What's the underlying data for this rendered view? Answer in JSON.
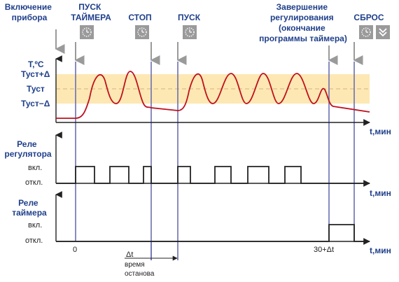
{
  "events": {
    "power_on": "Включение прибора",
    "start_timer": "ПУСК ТАЙМЕРА",
    "stop": "СТОП",
    "start": "ПУСК",
    "end": "Завершение регулирования (окончание программы таймера)",
    "reset": "СБРОС"
  },
  "event_lines": {
    "power_on": [
      "Включение",
      "прибора"
    ],
    "start_timer": [
      "ПУСК",
      "ТАЙМЕРА"
    ],
    "stop": [
      "СТОП"
    ],
    "start": [
      "ПУСК"
    ],
    "end": [
      "Завершение",
      "регулирования",
      "(окончание",
      "программы таймера)"
    ],
    "reset": [
      "СБРОС"
    ]
  },
  "temperature_chart": {
    "ylabel": "Т,ºС",
    "ticks": [
      "Туст+Δ",
      "Туст",
      "Туст−Δ"
    ],
    "xlabel": "t,мин"
  },
  "regulator_relay": {
    "title": [
      "Реле",
      "регулятора"
    ],
    "on": "вкл.",
    "off": "откл.",
    "xlabel": "t,мин"
  },
  "timer_relay": {
    "title": [
      "Реле",
      "таймера"
    ],
    "on": "вкл.",
    "off": "откл.",
    "xlabel": "t,мин"
  },
  "time_labels": {
    "zero": "0",
    "end": "30+Δt",
    "delta": "Δt",
    "delta_caption": [
      "время",
      "останова"
    ]
  },
  "colors": {
    "accent_blue": "#1f3f8a",
    "temperature_curve": "#c0101e",
    "tolerance_band": "#fde8b4",
    "button_gray": "#9a9a9a"
  },
  "icons": {
    "start_timer": "timer-button-icon",
    "stop": "timer-button-icon",
    "start": "timer-button-icon",
    "reset_left": "timer-button-icon",
    "reset_right": "chevron-down-button-icon"
  }
}
